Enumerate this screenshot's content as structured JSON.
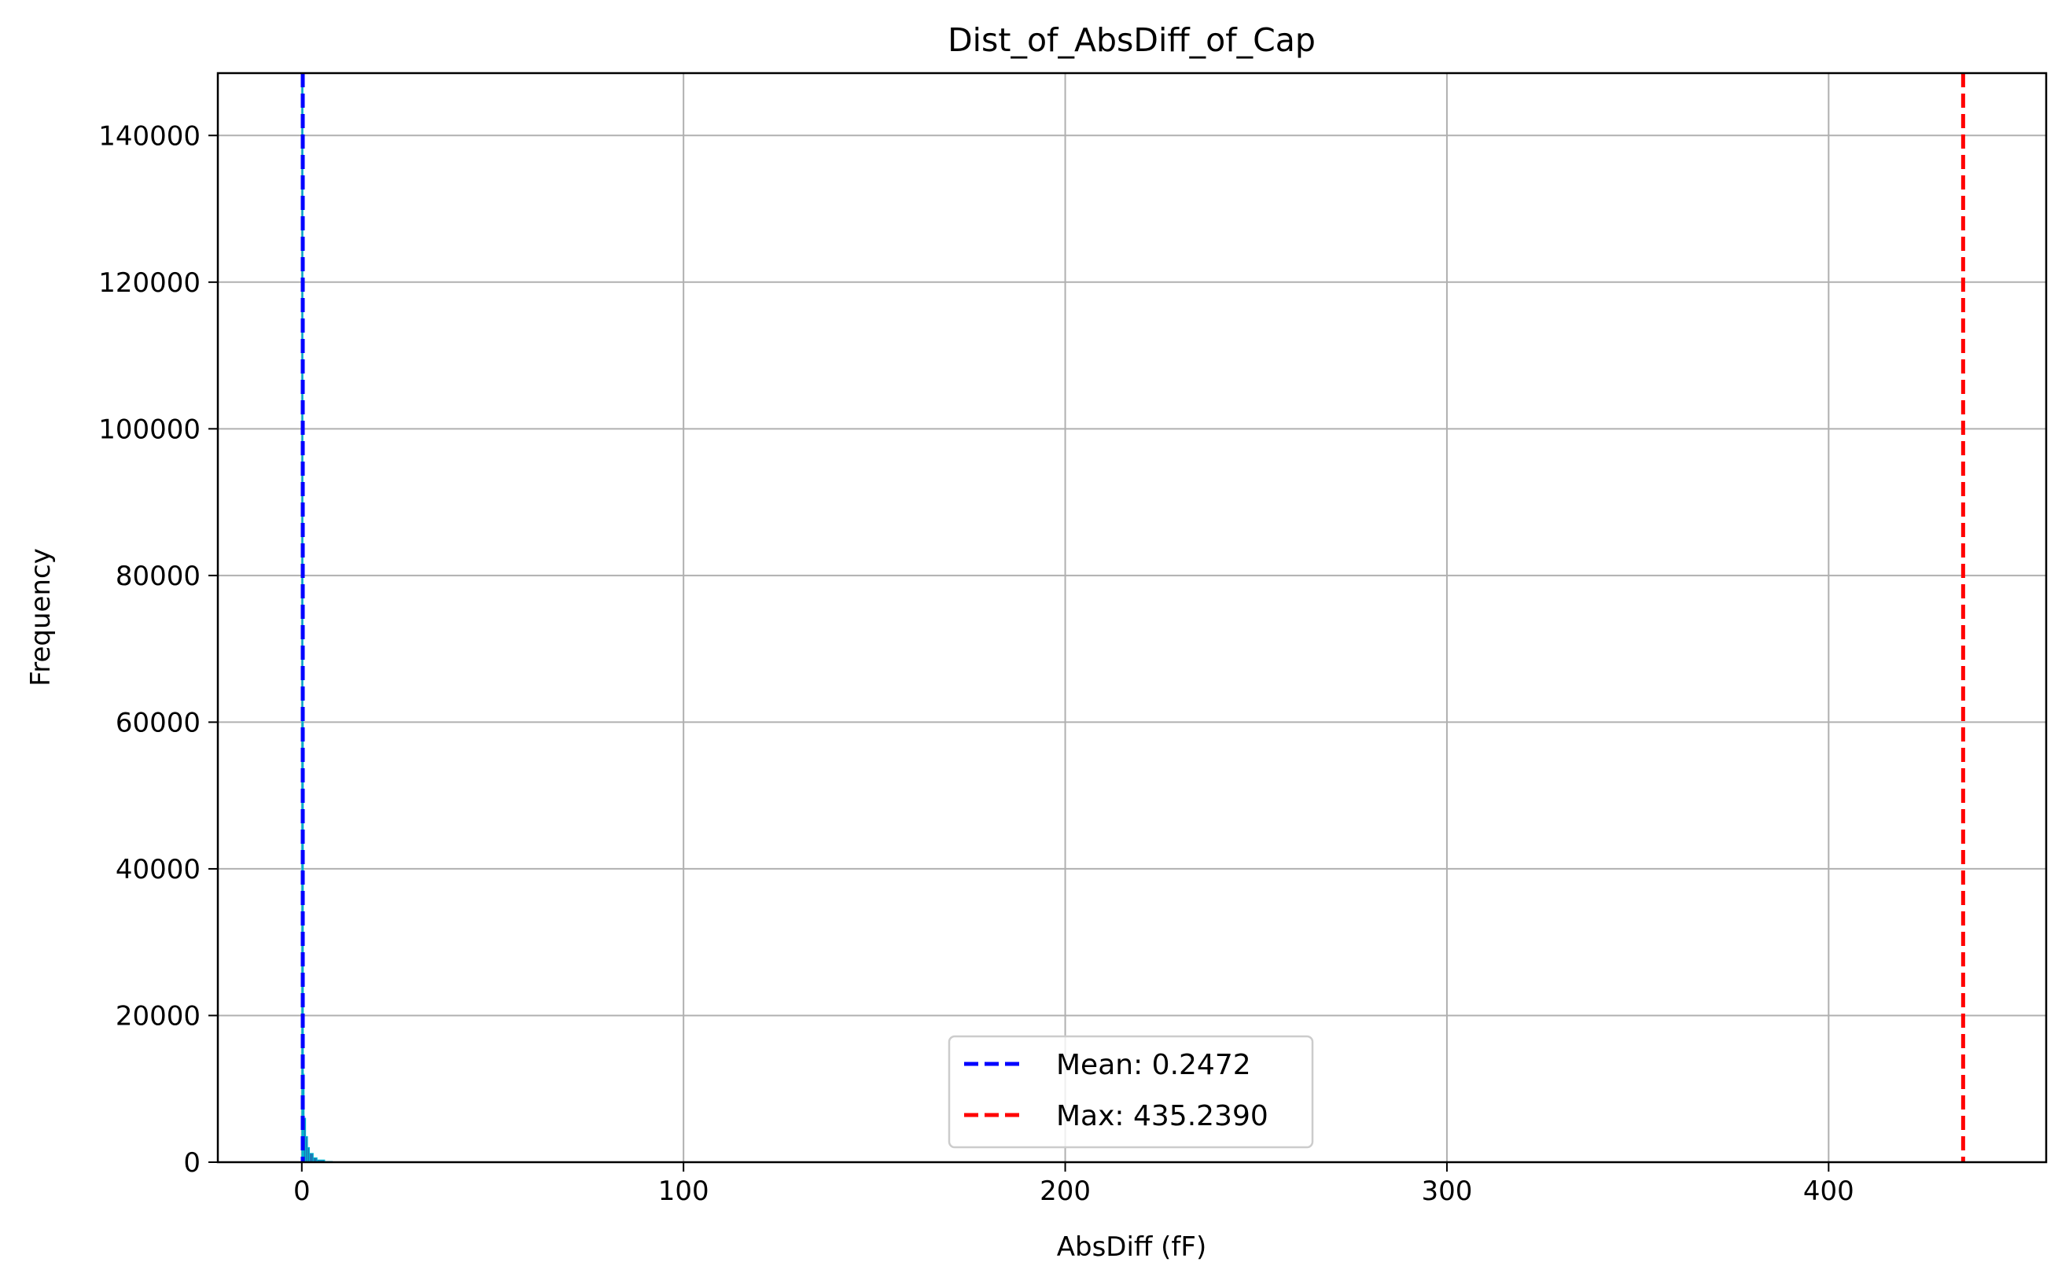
{
  "chart_data": {
    "type": "bar",
    "title": "Dist_of_AbsDiff_of_Cap",
    "xlabel": "AbsDiff (fF)",
    "ylabel": "Frequency",
    "xlim": [
      -22,
      457
    ],
    "ylim": [
      0,
      148500
    ],
    "grid": true,
    "x_ticks": [
      0,
      100,
      200,
      300,
      400
    ],
    "y_ticks": [
      0,
      20000,
      40000,
      60000,
      80000,
      100000,
      120000,
      140000
    ],
    "x_tick_labels": [
      "0",
      "100",
      "200",
      "300",
      "400"
    ],
    "y_tick_labels": [
      "0",
      "20000",
      "40000",
      "60000",
      "80000",
      "100000",
      "120000",
      "140000"
    ],
    "histogram": {
      "color": "#1f77b4",
      "bins": [
        {
          "x0": 0.0,
          "x1": 0.1,
          "count": 148000
        },
        {
          "x0": 0.1,
          "x1": 0.3,
          "count": 60000
        },
        {
          "x0": 0.3,
          "x1": 0.5,
          "count": 12000
        },
        {
          "x0": 0.5,
          "x1": 1.0,
          "count": 6000
        },
        {
          "x0": 1.0,
          "x1": 1.5,
          "count": 3500
        },
        {
          "x0": 1.5,
          "x1": 2.0,
          "count": 2000
        },
        {
          "x0": 2.0,
          "x1": 3.0,
          "count": 1200
        },
        {
          "x0": 3.0,
          "x1": 4.0,
          "count": 600
        },
        {
          "x0": 4.0,
          "x1": 6.0,
          "count": 300
        },
        {
          "x0": 6.0,
          "x1": 8.0,
          "count": 100
        }
      ]
    },
    "reference_lines": [
      {
        "name": "Mean: 0.2472",
        "value": 0.2472,
        "color": "#0000ff",
        "style": "dashed"
      },
      {
        "name": "Max: 435.2390",
        "value": 435.239,
        "color": "#ff0000",
        "style": "dashed"
      }
    ],
    "legend": {
      "placement": "lower-center",
      "entries": [
        "Mean: 0.2472",
        "Max: 435.2390"
      ]
    }
  }
}
